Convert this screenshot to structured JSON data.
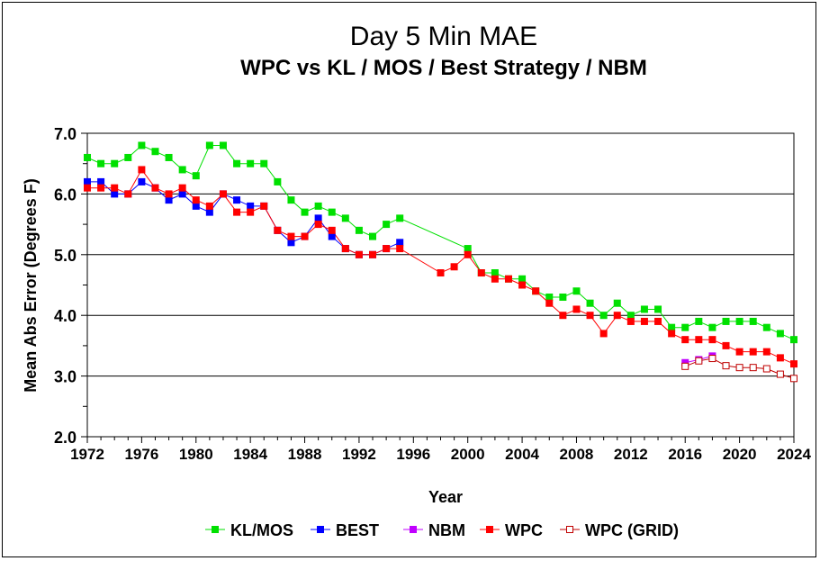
{
  "chart_data": {
    "type": "line",
    "title": "Day 5 Min MAE",
    "subtitle": "WPC vs KL / MOS / Best Strategy / NBM",
    "xlabel": "Year",
    "ylabel": "Mean Abs Error (Degrees F)",
    "xlim": [
      1972,
      2024
    ],
    "ylim": [
      2.0,
      7.0
    ],
    "xticks": [
      1972,
      1976,
      1980,
      1984,
      1988,
      1992,
      1996,
      2000,
      2004,
      2008,
      2012,
      2016,
      2020,
      2024
    ],
    "yticks": [
      2.0,
      3.0,
      4.0,
      5.0,
      6.0,
      7.0
    ],
    "ytick_labels": [
      "2.0",
      "3.0",
      "4.0",
      "5.0",
      "6.0",
      "7.0"
    ],
    "grid": "horizontal",
    "legend_position": "bottom",
    "series": [
      {
        "name": "KL/MOS",
        "color": "#00e000",
        "marker": "filled-square",
        "x": [
          1972,
          1973,
          1974,
          1975,
          1976,
          1977,
          1978,
          1979,
          1980,
          1981,
          1982,
          1983,
          1984,
          1985,
          1986,
          1987,
          1988,
          1989,
          1990,
          1991,
          1992,
          1993,
          1994,
          1995,
          2000,
          2001,
          2002,
          2003,
          2004,
          2005,
          2006,
          2007,
          2008,
          2009,
          2010,
          2011,
          2012,
          2013,
          2014,
          2015,
          2016,
          2017,
          2018,
          2019,
          2020,
          2021,
          2022,
          2023,
          2024
        ],
        "y": [
          6.6,
          6.5,
          6.5,
          6.6,
          6.8,
          6.7,
          6.6,
          6.4,
          6.3,
          6.8,
          6.8,
          6.5,
          6.5,
          6.5,
          6.2,
          5.9,
          5.7,
          5.8,
          5.7,
          5.6,
          5.4,
          5.3,
          5.5,
          5.6,
          5.1,
          4.7,
          4.7,
          4.6,
          4.6,
          4.4,
          4.3,
          4.3,
          4.4,
          4.2,
          4.0,
          4.2,
          4.0,
          4.1,
          4.1,
          3.8,
          3.8,
          3.9,
          3.8,
          3.9,
          3.9,
          3.9,
          3.8,
          3.7,
          3.6
        ]
      },
      {
        "name": "BEST",
        "color": "#0000ff",
        "marker": "filled-square",
        "x": [
          1972,
          1973,
          1974,
          1975,
          1976,
          1977,
          1978,
          1979,
          1980,
          1981,
          1982,
          1983,
          1984,
          1985,
          1986,
          1987,
          1988,
          1989,
          1990,
          1991,
          1992,
          1993,
          1994,
          1995
        ],
        "y": [
          6.2,
          6.2,
          6.0,
          6.0,
          6.2,
          6.1,
          5.9,
          6.0,
          5.8,
          5.7,
          6.0,
          5.9,
          5.8,
          5.8,
          5.4,
          5.2,
          5.3,
          5.6,
          5.3,
          5.1,
          5.0,
          5.0,
          5.1,
          5.2
        ]
      },
      {
        "name": "NBM",
        "color": "#c000ff",
        "marker": "filled-square",
        "x": [
          2016,
          2017,
          2018
        ],
        "y": [
          3.22,
          3.27,
          3.33
        ]
      },
      {
        "name": "WPC",
        "color": "#ff0000",
        "marker": "filled-square",
        "x": [
          1972,
          1973,
          1974,
          1975,
          1976,
          1977,
          1978,
          1979,
          1980,
          1981,
          1982,
          1983,
          1984,
          1985,
          1986,
          1987,
          1988,
          1989,
          1990,
          1991,
          1992,
          1993,
          1994,
          1995,
          1998,
          1999,
          2000,
          2001,
          2002,
          2003,
          2004,
          2005,
          2006,
          2007,
          2008,
          2009,
          2010,
          2011,
          2012,
          2013,
          2014,
          2015,
          2016,
          2017,
          2018,
          2019,
          2020,
          2021,
          2022,
          2023,
          2024
        ],
        "y": [
          6.1,
          6.1,
          6.1,
          6.0,
          6.4,
          6.1,
          6.0,
          6.1,
          5.9,
          5.8,
          6.0,
          5.7,
          5.7,
          5.8,
          5.4,
          5.3,
          5.3,
          5.5,
          5.4,
          5.1,
          5.0,
          5.0,
          5.1,
          5.1,
          4.7,
          4.8,
          5.0,
          4.7,
          4.6,
          4.6,
          4.5,
          4.4,
          4.2,
          4.0,
          4.1,
          4.0,
          3.7,
          4.0,
          3.9,
          3.9,
          3.9,
          3.7,
          3.6,
          3.6,
          3.6,
          3.5,
          3.4,
          3.4,
          3.4,
          3.3,
          3.2
        ]
      },
      {
        "name": "WPC (GRID)",
        "color": "#c00000",
        "marker": "open-square",
        "x": [
          2016,
          2017,
          2018,
          2019,
          2020,
          2021,
          2022,
          2023,
          2024
        ],
        "y": [
          3.16,
          3.25,
          3.29,
          3.17,
          3.14,
          3.14,
          3.12,
          3.03,
          2.96
        ]
      }
    ]
  }
}
